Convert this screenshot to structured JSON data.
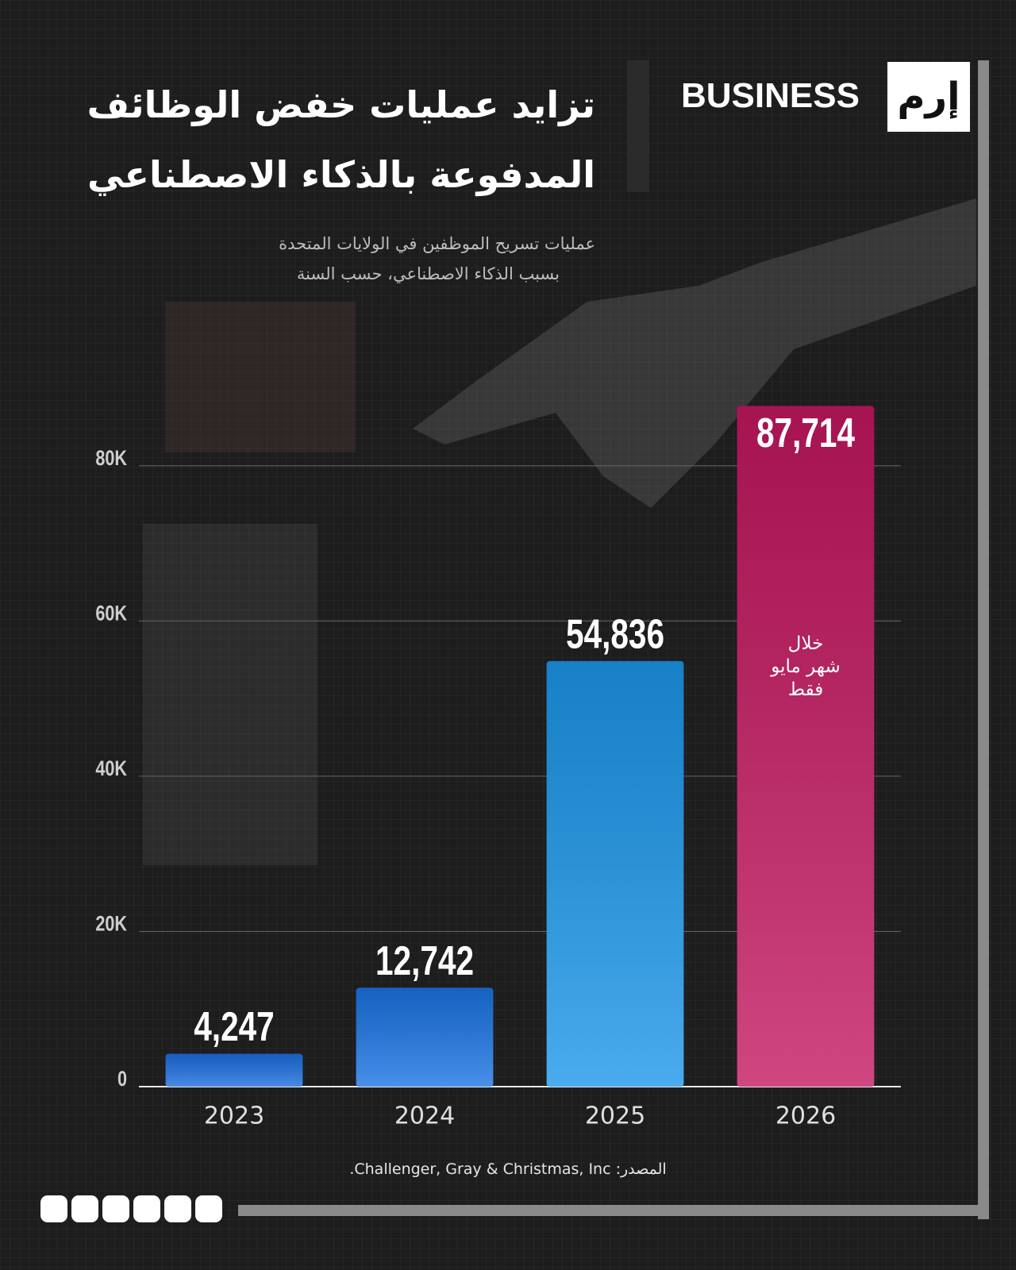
{
  "brand": {
    "name": "BUSINESS",
    "mark": "إرم"
  },
  "chart_data": {
    "type": "bar",
    "title": [
      "تزايد عمليات خفض الوظائف",
      "المدفوعة بالذكاء الاصطناعي"
    ],
    "subtitle": [
      "عمليات تسريح الموظفين في الولايات المتحدة",
      "بسبب الذكاء الاصطناعي، حسب السنة"
    ],
    "categories": [
      "2023",
      "2024",
      "2025",
      "2026"
    ],
    "values": [
      4247,
      12742,
      54836,
      87714
    ],
    "value_labels": [
      "4,247",
      "12,742",
      "54,836",
      "87,714"
    ],
    "colors": [
      "#1b6fdf",
      "#1b74e4",
      "#1c97ea",
      "#c31860"
    ],
    "ylim": [
      0,
      90000
    ],
    "yticks": [
      0,
      {
        "value": 20000,
        "label": "20K"
      },
      {
        "value": 40000,
        "label": "40K"
      },
      {
        "value": 60000,
        "label": "60K"
      },
      {
        "value": 80000,
        "label": "80K"
      }
    ],
    "grid": true,
    "annotation": [
      "خلال",
      "شهر مايو",
      "فقط"
    ],
    "source": "المصدر: Challenger, Gray & Christmas, Inc."
  }
}
